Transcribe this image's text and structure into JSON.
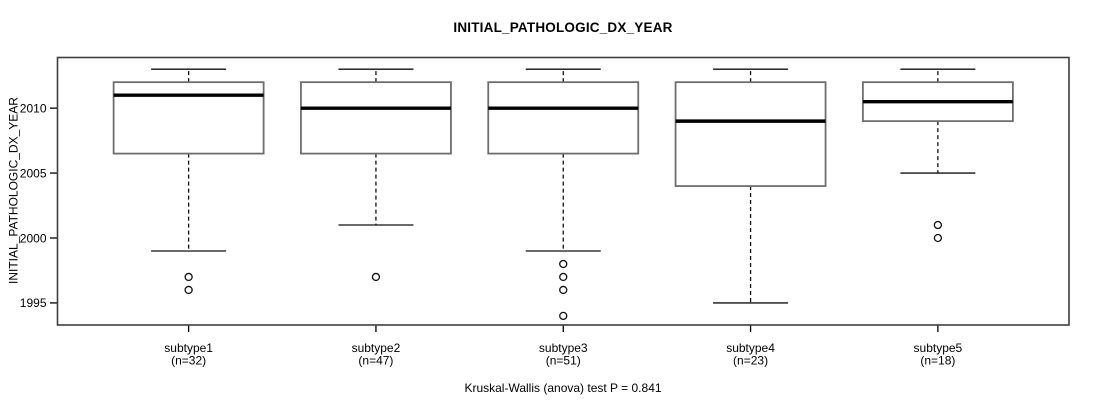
{
  "chart_data": {
    "type": "boxplot",
    "title": "INITIAL_PATHOLOGIC_DX_YEAR",
    "ylabel": "INITIAL_PATHOLOGIC_DX_YEAR",
    "xlabel": "",
    "annotation": "Kruskal-Wallis (anova) test P = 0.841",
    "ylim": [
      1993.3,
      2013.9
    ],
    "yticks": [
      1995,
      2000,
      2005,
      2010
    ],
    "grid": false,
    "legend": "none",
    "categories": [
      "subtype1",
      "subtype2",
      "subtype3",
      "subtype4",
      "subtype5"
    ],
    "groups": [
      {
        "label": "subtype1",
        "count_label": "(n=32)",
        "n": 32,
        "whisker_low": 1999,
        "q1": 2006.5,
        "median": 2011,
        "q3": 2012,
        "whisker_high": 2013,
        "outliers": [
          1997,
          1996
        ]
      },
      {
        "label": "subtype2",
        "count_label": "(n=47)",
        "n": 47,
        "whisker_low": 2001,
        "q1": 2006.5,
        "median": 2010,
        "q3": 2012,
        "whisker_high": 2013,
        "outliers": [
          1997
        ]
      },
      {
        "label": "subtype3",
        "count_label": "(n=51)",
        "n": 51,
        "whisker_low": 1999,
        "q1": 2006.5,
        "median": 2010,
        "q3": 2012,
        "whisker_high": 2013,
        "outliers": [
          1998,
          1997,
          1996,
          1994
        ]
      },
      {
        "label": "subtype4",
        "count_label": "(n=23)",
        "n": 23,
        "whisker_low": 1995,
        "q1": 2004,
        "median": 2009,
        "q3": 2012,
        "whisker_high": 2013,
        "outliers": []
      },
      {
        "label": "subtype5",
        "count_label": "(n=18)",
        "n": 18,
        "whisker_low": 2005,
        "q1": 2009,
        "median": 2010.5,
        "q3": 2012,
        "whisker_high": 2013,
        "outliers": [
          2001,
          2000
        ]
      }
    ]
  },
  "colors": {
    "background": "#ffffff",
    "frame": "#3f3f3f",
    "box_stroke": "#6e6e6e",
    "box_fill": "#ffffff",
    "median": "#000000",
    "whisker": "#111111",
    "outlier": "#111111",
    "text": "#000000"
  }
}
